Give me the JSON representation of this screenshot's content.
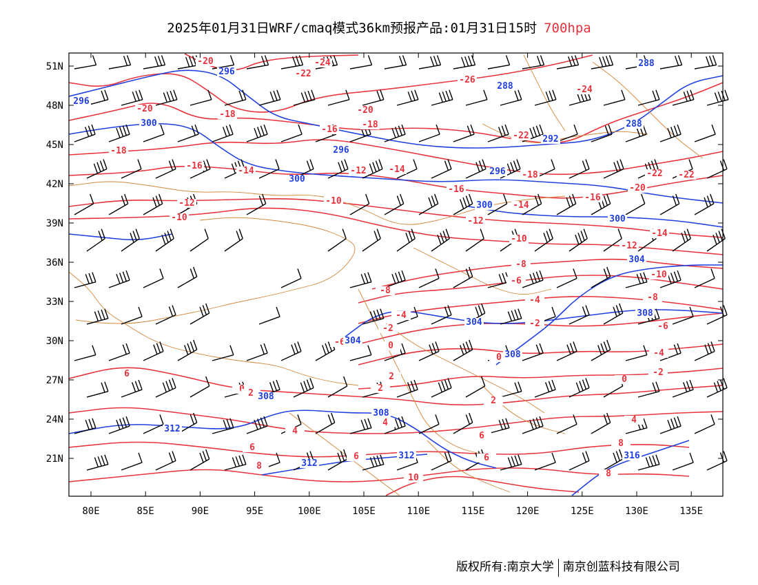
{
  "title": {
    "main": "2025年01月31日WRF/cmaq模式36km预报产品:01月31日15时",
    "level": "700hpa",
    "level_color": "#e8323c"
  },
  "footer": {
    "copyright": "版权所有:南京大学",
    "company": "南京创蓝科技有限公司"
  },
  "colors": {
    "temperature": "#e8323c",
    "geopotential": "#1f3fe0",
    "wind": "#000000",
    "boundary": "#d4873a"
  },
  "map": {
    "lon_range": [
      78,
      138
    ],
    "lat_range": [
      18,
      52
    ],
    "x_ticks": [
      "80E",
      "85E",
      "90E",
      "95E",
      "100E",
      "105E",
      "110E",
      "115E",
      "120E",
      "125E",
      "130E",
      "135E"
    ],
    "y_ticks": [
      "51N",
      "48N",
      "45N",
      "42N",
      "39N",
      "36N",
      "33N",
      "30N",
      "27N",
      "24N",
      "21N"
    ]
  },
  "temperature_labels": [
    {
      "text": "-20"
    },
    {
      "text": "-24"
    },
    {
      "text": "-22"
    },
    {
      "text": "-26"
    },
    {
      "text": "-24"
    },
    {
      "text": "-20"
    },
    {
      "text": "-18"
    },
    {
      "text": "-20"
    },
    {
      "text": "-18"
    },
    {
      "text": "-16"
    },
    {
      "text": "-18"
    },
    {
      "text": "-22"
    },
    {
      "text": "-16"
    },
    {
      "text": "-14"
    },
    {
      "text": "-12"
    },
    {
      "text": "-14"
    },
    {
      "text": "-18"
    },
    {
      "text": "-22"
    },
    {
      "text": "-22"
    },
    {
      "text": "-20"
    },
    {
      "text": "-16"
    },
    {
      "text": "-16"
    },
    {
      "text": "-12"
    },
    {
      "text": "-10"
    },
    {
      "text": "-10"
    },
    {
      "text": "-14"
    },
    {
      "text": "-12"
    },
    {
      "text": "-12"
    },
    {
      "text": "-10"
    },
    {
      "text": "-14"
    },
    {
      "text": "-8"
    },
    {
      "text": "-10"
    },
    {
      "text": "-6"
    },
    {
      "text": "-8"
    },
    {
      "text": "-8"
    },
    {
      "text": "-4"
    },
    {
      "text": "-6"
    },
    {
      "text": "-4"
    },
    {
      "text": "-2"
    },
    {
      "text": "-2"
    },
    {
      "text": "-4"
    },
    {
      "text": "-6"
    },
    {
      "text": "0"
    },
    {
      "text": "0"
    },
    {
      "text": "-2"
    },
    {
      "text": "0"
    },
    {
      "text": "2"
    },
    {
      "text": "2"
    },
    {
      "text": "0"
    },
    {
      "text": "2"
    },
    {
      "text": "6"
    },
    {
      "text": "2"
    },
    {
      "text": "4"
    },
    {
      "text": "4"
    },
    {
      "text": "4"
    },
    {
      "text": "6"
    },
    {
      "text": "6"
    },
    {
      "text": "6"
    },
    {
      "text": "8"
    },
    {
      "text": "6"
    },
    {
      "text": "8"
    },
    {
      "text": "8"
    },
    {
      "text": "10"
    }
  ],
  "geopotential_labels": [
    {
      "text": "296"
    },
    {
      "text": "288"
    },
    {
      "text": "296"
    },
    {
      "text": "288"
    },
    {
      "text": "300"
    },
    {
      "text": "288"
    },
    {
      "text": "292"
    },
    {
      "text": "296"
    },
    {
      "text": "296"
    },
    {
      "text": "300"
    },
    {
      "text": "300"
    },
    {
      "text": "300"
    },
    {
      "text": "304"
    },
    {
      "text": "304"
    },
    {
      "text": "308"
    },
    {
      "text": "304"
    },
    {
      "text": "308"
    },
    {
      "text": "308"
    },
    {
      "text": "308"
    },
    {
      "text": "312"
    },
    {
      "text": "312"
    },
    {
      "text": "312"
    },
    {
      "text": "316"
    }
  ]
}
